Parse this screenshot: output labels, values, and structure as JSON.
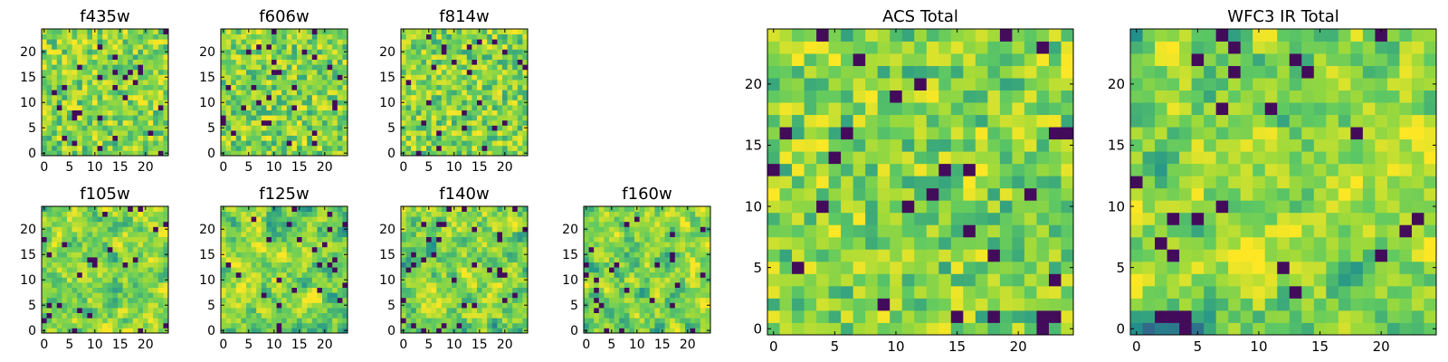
{
  "chart_data": [
    {
      "type": "heatmap",
      "title": "f435w",
      "xticks": [
        "0",
        "5",
        "10",
        "15",
        "20"
      ],
      "yticks": [
        "0",
        "5",
        "10",
        "15",
        "20"
      ],
      "xlim": [
        0,
        25
      ],
      "ylim": [
        0,
        25
      ],
      "colormap": "viridis",
      "seed": 11
    },
    {
      "type": "heatmap",
      "title": "f606w",
      "xticks": [
        "0",
        "5",
        "10",
        "15",
        "20"
      ],
      "yticks": [
        "0",
        "5",
        "10",
        "15",
        "20"
      ],
      "xlim": [
        0,
        25
      ],
      "ylim": [
        0,
        25
      ],
      "colormap": "viridis",
      "seed": 23
    },
    {
      "type": "heatmap",
      "title": "f814w",
      "xticks": [
        "0",
        "5",
        "10",
        "15",
        "20"
      ],
      "yticks": [
        "0",
        "5",
        "10",
        "15",
        "20"
      ],
      "xlim": [
        0,
        25
      ],
      "ylim": [
        0,
        25
      ],
      "colormap": "viridis",
      "seed": 37
    },
    {
      "type": "heatmap",
      "title": "f105w",
      "xticks": [
        "0",
        "5",
        "10",
        "15",
        "20"
      ],
      "yticks": [
        "0",
        "5",
        "10",
        "15",
        "20"
      ],
      "xlim": [
        0,
        25
      ],
      "ylim": [
        0,
        25
      ],
      "colormap": "viridis",
      "seed": 41
    },
    {
      "type": "heatmap",
      "title": "f125w",
      "xticks": [
        "0",
        "5",
        "10",
        "15",
        "20"
      ],
      "yticks": [
        "0",
        "5",
        "10",
        "15",
        "20"
      ],
      "xlim": [
        0,
        25
      ],
      "ylim": [
        0,
        25
      ],
      "colormap": "viridis",
      "seed": 53
    },
    {
      "type": "heatmap",
      "title": "f140w",
      "xticks": [
        "0",
        "5",
        "10",
        "15",
        "20"
      ],
      "yticks": [
        "0",
        "5",
        "10",
        "15",
        "20"
      ],
      "xlim": [
        0,
        25
      ],
      "ylim": [
        0,
        25
      ],
      "colormap": "viridis",
      "seed": 67
    },
    {
      "type": "heatmap",
      "title": "f160w",
      "xticks": [
        "0",
        "5",
        "10",
        "15",
        "20"
      ],
      "yticks": [
        "0",
        "5",
        "10",
        "15",
        "20"
      ],
      "xlim": [
        0,
        25
      ],
      "ylim": [
        0,
        25
      ],
      "colormap": "viridis",
      "seed": 79
    },
    {
      "type": "heatmap",
      "title": "ACS Total",
      "xticks": [
        "0",
        "5",
        "10",
        "15",
        "20"
      ],
      "yticks": [
        "0",
        "5",
        "10",
        "15",
        "20"
      ],
      "xlim": [
        0,
        25
      ],
      "ylim": [
        0,
        25
      ],
      "colormap": "viridis",
      "seed": 83
    },
    {
      "type": "heatmap",
      "title": "WFC3 IR Total",
      "xticks": [
        "0",
        "5",
        "10",
        "15",
        "20"
      ],
      "yticks": [
        "0",
        "5",
        "10",
        "15",
        "20"
      ],
      "xlim": [
        0,
        25
      ],
      "ylim": [
        0,
        25
      ],
      "colormap": "viridis",
      "seed": 97
    }
  ],
  "colors": {
    "viridis_low": "#440154",
    "viridis_mid": "#21918c",
    "viridis_green": "#5ec962",
    "viridis_high": "#fde725",
    "axis": "#000000",
    "background": "#ffffff"
  }
}
